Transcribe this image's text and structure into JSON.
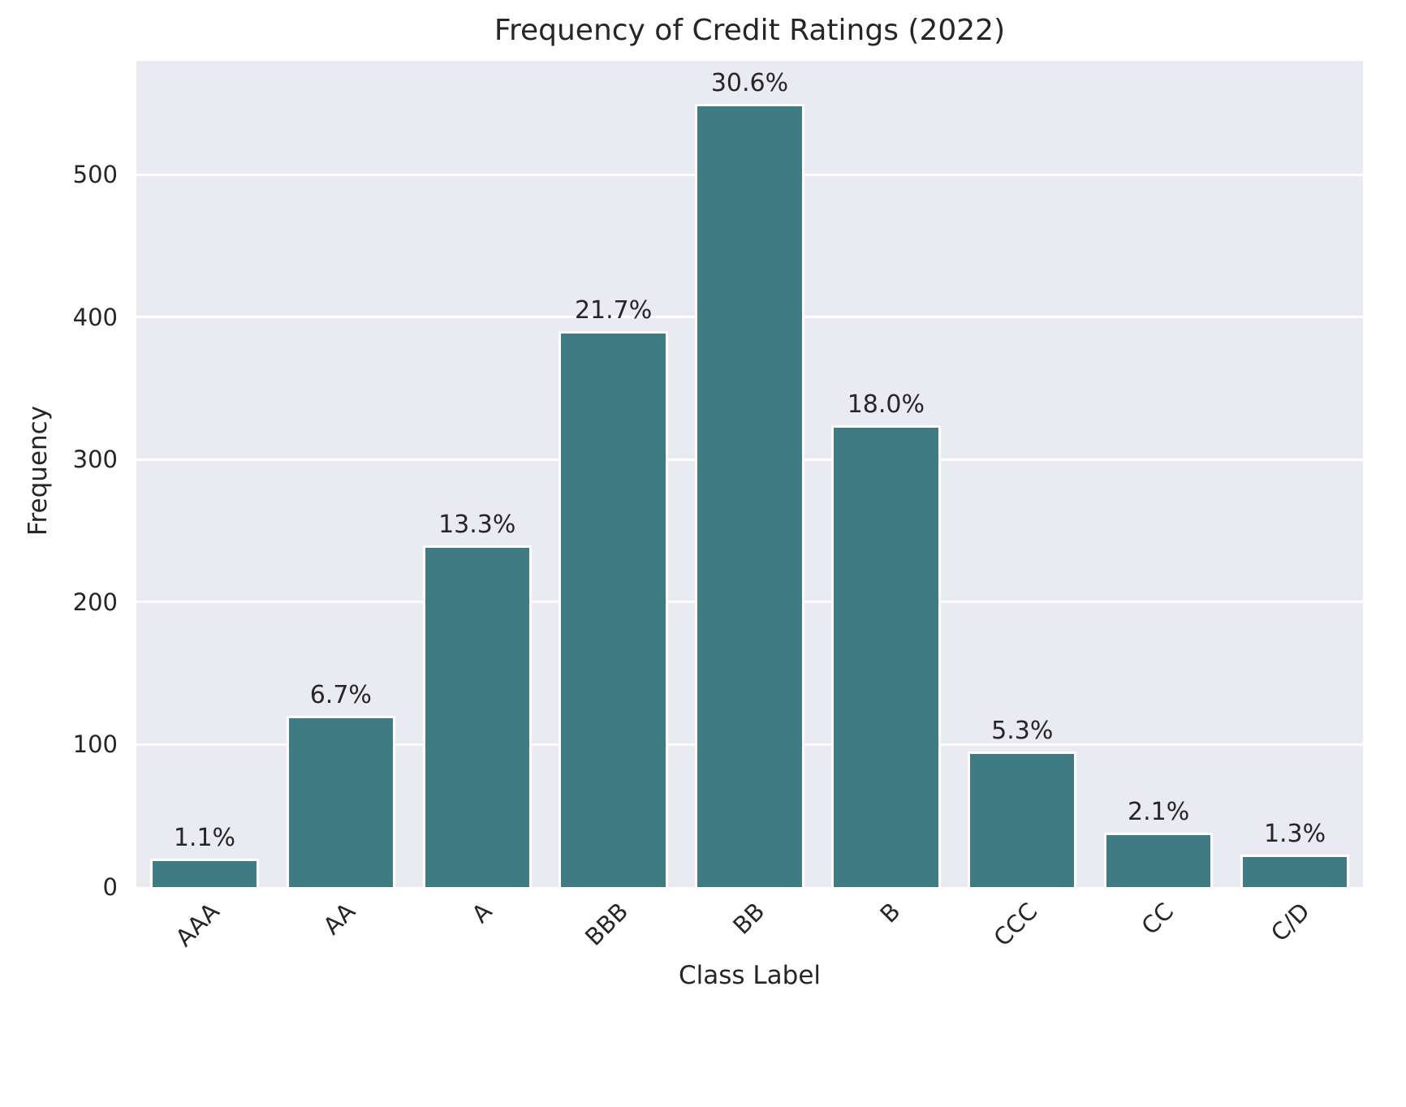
{
  "figure": {
    "background": "#ffffff"
  },
  "chart_data": {
    "type": "bar",
    "title": "Frequency of Credit Ratings (2022)",
    "xlabel": "Class Label",
    "ylabel": "Frequency",
    "categories": [
      "AAA",
      "AA",
      "A",
      "BBB",
      "BB",
      "B",
      "CCC",
      "CC",
      "C/D"
    ],
    "values": [
      20,
      120,
      240,
      390,
      550,
      324,
      95,
      38,
      23
    ],
    "bar_labels": [
      "1.1%",
      "6.7%",
      "13.3%",
      "21.7%",
      "30.6%",
      "18.0%",
      "5.3%",
      "2.1%",
      "1.3%"
    ],
    "yticks": [
      0,
      100,
      200,
      300,
      400,
      500
    ],
    "ylim": [
      0,
      580
    ],
    "grid": "horizontal-white",
    "legend_position": "none",
    "bar_color": "#3f7b82",
    "bar_edge_color": "#ffffff",
    "plot_background": "#eaeaf2",
    "grid_color": "#ffffff",
    "text_color": "#262626",
    "bar_width_fraction": 0.8,
    "xtick_rotation_deg": 45
  }
}
